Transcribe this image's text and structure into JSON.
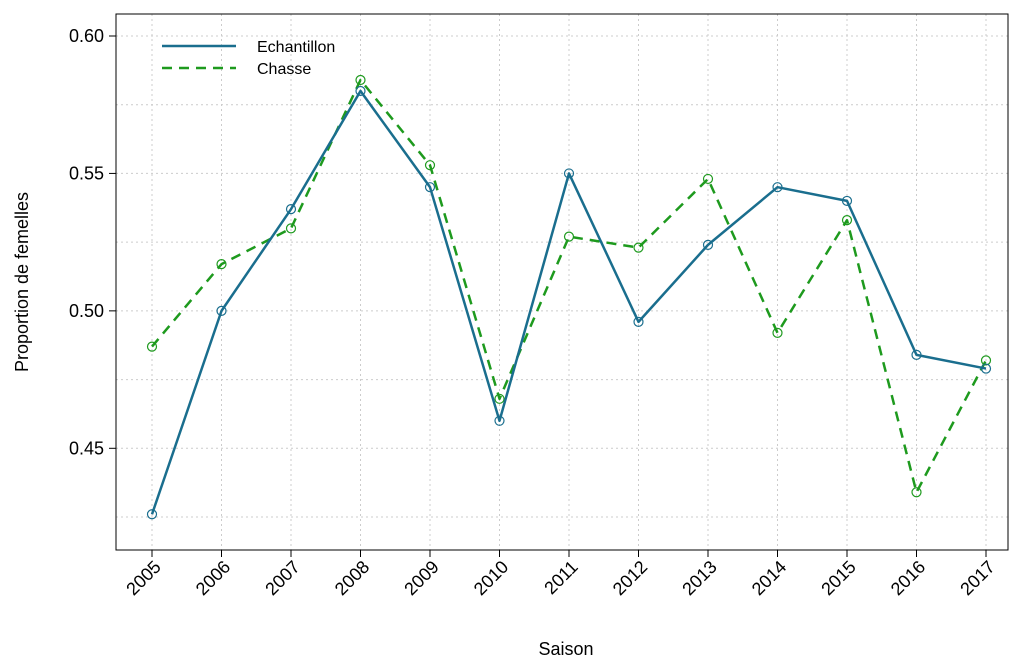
{
  "chart_data": {
    "type": "line",
    "title": "",
    "xlabel": "Saison",
    "ylabel": "Proportion de femelles",
    "x": [
      "2005",
      "2006",
      "2007",
      "2008",
      "2009",
      "2010",
      "2011",
      "2012",
      "2013",
      "2014",
      "2015",
      "2016",
      "2017"
    ],
    "ylim": [
      0.413,
      0.608
    ],
    "yticks": [
      "0.45",
      "0.50",
      "0.55",
      "0.60"
    ],
    "grid": true,
    "legend_position": "top-left",
    "series": [
      {
        "name": "Echantillon",
        "color": "#1a6e8e",
        "style": "solid",
        "values": [
          0.426,
          0.5,
          0.537,
          0.58,
          0.545,
          0.46,
          0.55,
          0.496,
          0.524,
          0.545,
          0.54,
          0.484,
          0.479
        ]
      },
      {
        "name": "Chasse",
        "color": "#1e9a1e",
        "style": "dashed",
        "values": [
          0.487,
          0.517,
          0.53,
          0.584,
          0.553,
          0.468,
          0.527,
          0.523,
          0.548,
          0.492,
          0.533,
          0.434,
          0.482
        ]
      }
    ]
  }
}
